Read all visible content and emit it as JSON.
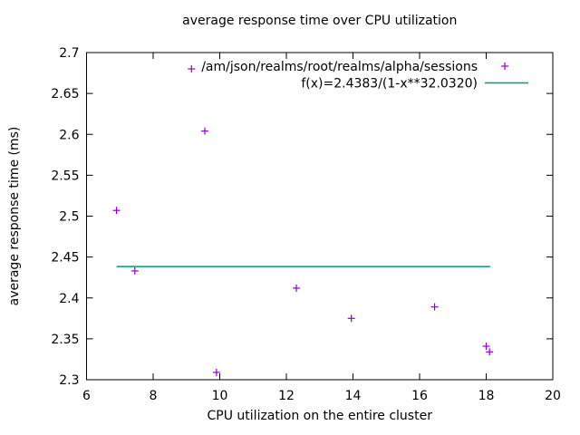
{
  "chart_data": {
    "type": "scatter",
    "title": "average response time over CPU utilization",
    "xlabel": "CPU utilization on the entire cluster",
    "ylabel": "average response time (ms)",
    "xlim": [
      6,
      20
    ],
    "ylim": [
      2.3,
      2.7
    ],
    "xticks": [
      6,
      8,
      10,
      12,
      14,
      16,
      18,
      20
    ],
    "yticks": [
      2.3,
      2.35,
      2.4,
      2.45,
      2.5,
      2.55,
      2.6,
      2.65,
      2.7
    ],
    "grid": false,
    "legend_position": "top-right-inside",
    "colors": {
      "axis": "#000000",
      "text": "#000000",
      "background": "#ffffff",
      "points": "#9400d3",
      "fit_line": "#009e73"
    },
    "series": [
      {
        "name": "/am/json/realms/root/realms/alpha/sessions",
        "type": "points",
        "marker": "plus",
        "color": "#9400d3",
        "points": [
          {
            "x": 6.9,
            "y": 2.507
          },
          {
            "x": 7.45,
            "y": 2.433
          },
          {
            "x": 9.15,
            "y": 2.68
          },
          {
            "x": 9.55,
            "y": 2.604
          },
          {
            "x": 9.9,
            "y": 2.309
          },
          {
            "x": 12.3,
            "y": 2.412
          },
          {
            "x": 13.95,
            "y": 2.375
          },
          {
            "x": 16.45,
            "y": 2.389
          },
          {
            "x": 18.0,
            "y": 2.341
          },
          {
            "x": 18.1,
            "y": 2.334
          }
        ]
      },
      {
        "name": "f(x)=2.4383/(1-x**32.0320)",
        "type": "line",
        "color": "#009e73",
        "fit_constant": 2.4383,
        "points": [
          {
            "x": 6.9,
            "y": 2.4383
          },
          {
            "x": 18.12,
            "y": 2.4383
          }
        ]
      }
    ]
  }
}
